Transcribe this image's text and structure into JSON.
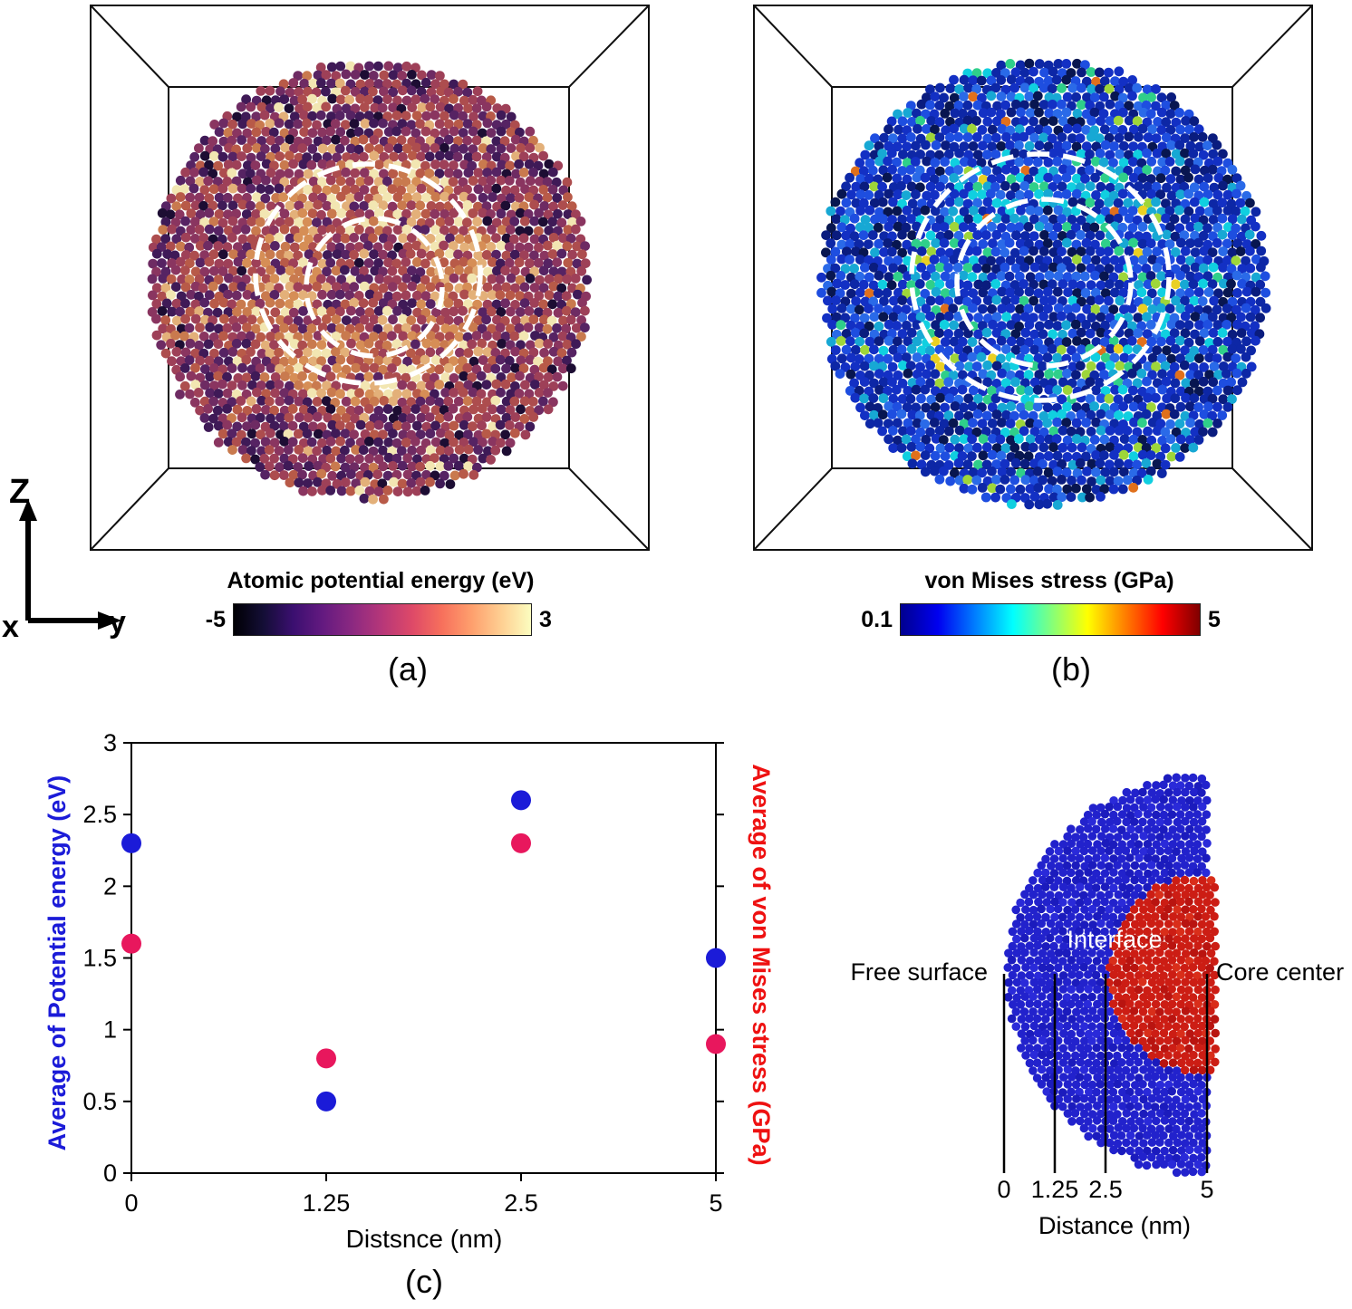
{
  "figure": {
    "panel_a": {
      "label": "(a)",
      "colorbar_title": "Atomic potential energy (eV)",
      "colorbar_min": "-5",
      "colorbar_max": "3",
      "colormap": [
        "#000004",
        "#140e36",
        "#3b0f70",
        "#641a80",
        "#8c2981",
        "#b73779",
        "#de4968",
        "#f7705c",
        "#fe9f6d",
        "#fecf92",
        "#fcfdbf"
      ],
      "atom_colors_base": [
        [
          "#3f1a57",
          14
        ],
        [
          "#562363",
          12
        ],
        [
          "#6e2b63",
          10
        ],
        [
          "#8a3560",
          16
        ],
        [
          "#9e4058",
          16
        ],
        [
          "#ad4d4e",
          10
        ],
        [
          "#b85a48",
          7
        ],
        [
          "#c97a4e",
          4
        ],
        [
          "#e3b079",
          3
        ],
        [
          "#f2e6b2",
          3
        ],
        [
          "#1d0d33",
          5
        ]
      ],
      "atom_colors_ring": [
        [
          "#9e4058",
          12
        ],
        [
          "#ad4d4e",
          10
        ],
        [
          "#c97a4e",
          15
        ],
        [
          "#d68e56",
          12
        ],
        [
          "#e3b079",
          12
        ],
        [
          "#f2e6b2",
          12
        ],
        [
          "#8a3560",
          10
        ],
        [
          "#562363",
          7
        ],
        [
          "#b85a48",
          10
        ]
      ]
    },
    "panel_b": {
      "label": "(b)",
      "colorbar_title": "von Mises stress (GPa)",
      "colorbar_min": "0.1",
      "colorbar_max": "5",
      "colormap": [
        "#00008f",
        "#0000f0",
        "#007fff",
        "#00ffff",
        "#7fff7f",
        "#ffff00",
        "#ff7f00",
        "#ff0000",
        "#7f0000"
      ],
      "atom_colors_base": [
        [
          "#1330c4",
          24
        ],
        [
          "#0d27a6",
          20
        ],
        [
          "#1e4ee0",
          15
        ],
        [
          "#0a1c7e",
          10
        ],
        [
          "#2a6ae8",
          8
        ],
        [
          "#17a8d4",
          7
        ],
        [
          "#10cfe0",
          3
        ],
        [
          "#2fcf8a",
          2
        ],
        [
          "#9ed63a",
          1
        ],
        [
          "#081650",
          9
        ],
        [
          "#e0701c",
          0.5
        ]
      ],
      "atom_colors_ring": [
        [
          "#1330c4",
          16
        ],
        [
          "#1e4ee0",
          12
        ],
        [
          "#17a8d4",
          15
        ],
        [
          "#10cfe0",
          10
        ],
        [
          "#2fcf8a",
          7
        ],
        [
          "#9ed63a",
          4
        ],
        [
          "#ead022",
          2.5
        ],
        [
          "#0d27a6",
          12
        ],
        [
          "#e0701c",
          1.5
        ],
        [
          "#2a6ae8",
          10
        ],
        [
          "#0a1c7e",
          8
        ]
      ]
    },
    "axis_triad": {
      "up": "Z",
      "right": "y",
      "depth": "x"
    }
  },
  "chart_data": {
    "type": "scatter",
    "label": "(c)",
    "xlabel": "Distsnce (nm)",
    "ylabel_left": "Average of Potential energy (eV)",
    "ylabel_right": "Average of von Mises stress (GPa)",
    "axis_colors": {
      "left": "#1b1bd8",
      "right": "#ee1111"
    },
    "x_ticks": [
      "0",
      "1.25",
      "2.5",
      "5"
    ],
    "y_ticks": [
      "0",
      "0.5",
      "1",
      "1.5",
      "2",
      "2.5",
      "3"
    ],
    "ylim": [
      0,
      3
    ],
    "x_tick_spacing": "even",
    "grid": false,
    "series": [
      {
        "name": "Average of Potential energy (eV)",
        "color": "#1b1bd8",
        "x": [
          0,
          1.25,
          2.5,
          5
        ],
        "values": [
          2.3,
          0.5,
          2.6,
          1.5
        ]
      },
      {
        "name": "Average of von Mises stress (GPa)",
        "color": "#e8175d",
        "x": [
          0,
          1.25,
          2.5,
          5
        ],
        "values": [
          1.6,
          0.8,
          2.3,
          0.9
        ]
      }
    ]
  },
  "schematic": {
    "free_surface_label": "Free surface",
    "interface_label": "Interface",
    "core_center_label": "Core center",
    "distance_ticks": [
      "0",
      "1.25",
      "2.5",
      "5"
    ],
    "distance_label": "Distance (nm)",
    "shell_colors": [
      [
        "#2222cc",
        70
      ],
      [
        "#1b1bbd",
        20
      ],
      [
        "#2a2ad9",
        10
      ]
    ],
    "core_colors": [
      [
        "#cc1d14",
        70
      ],
      [
        "#b91410",
        20
      ],
      [
        "#d92e1a",
        10
      ]
    ]
  }
}
